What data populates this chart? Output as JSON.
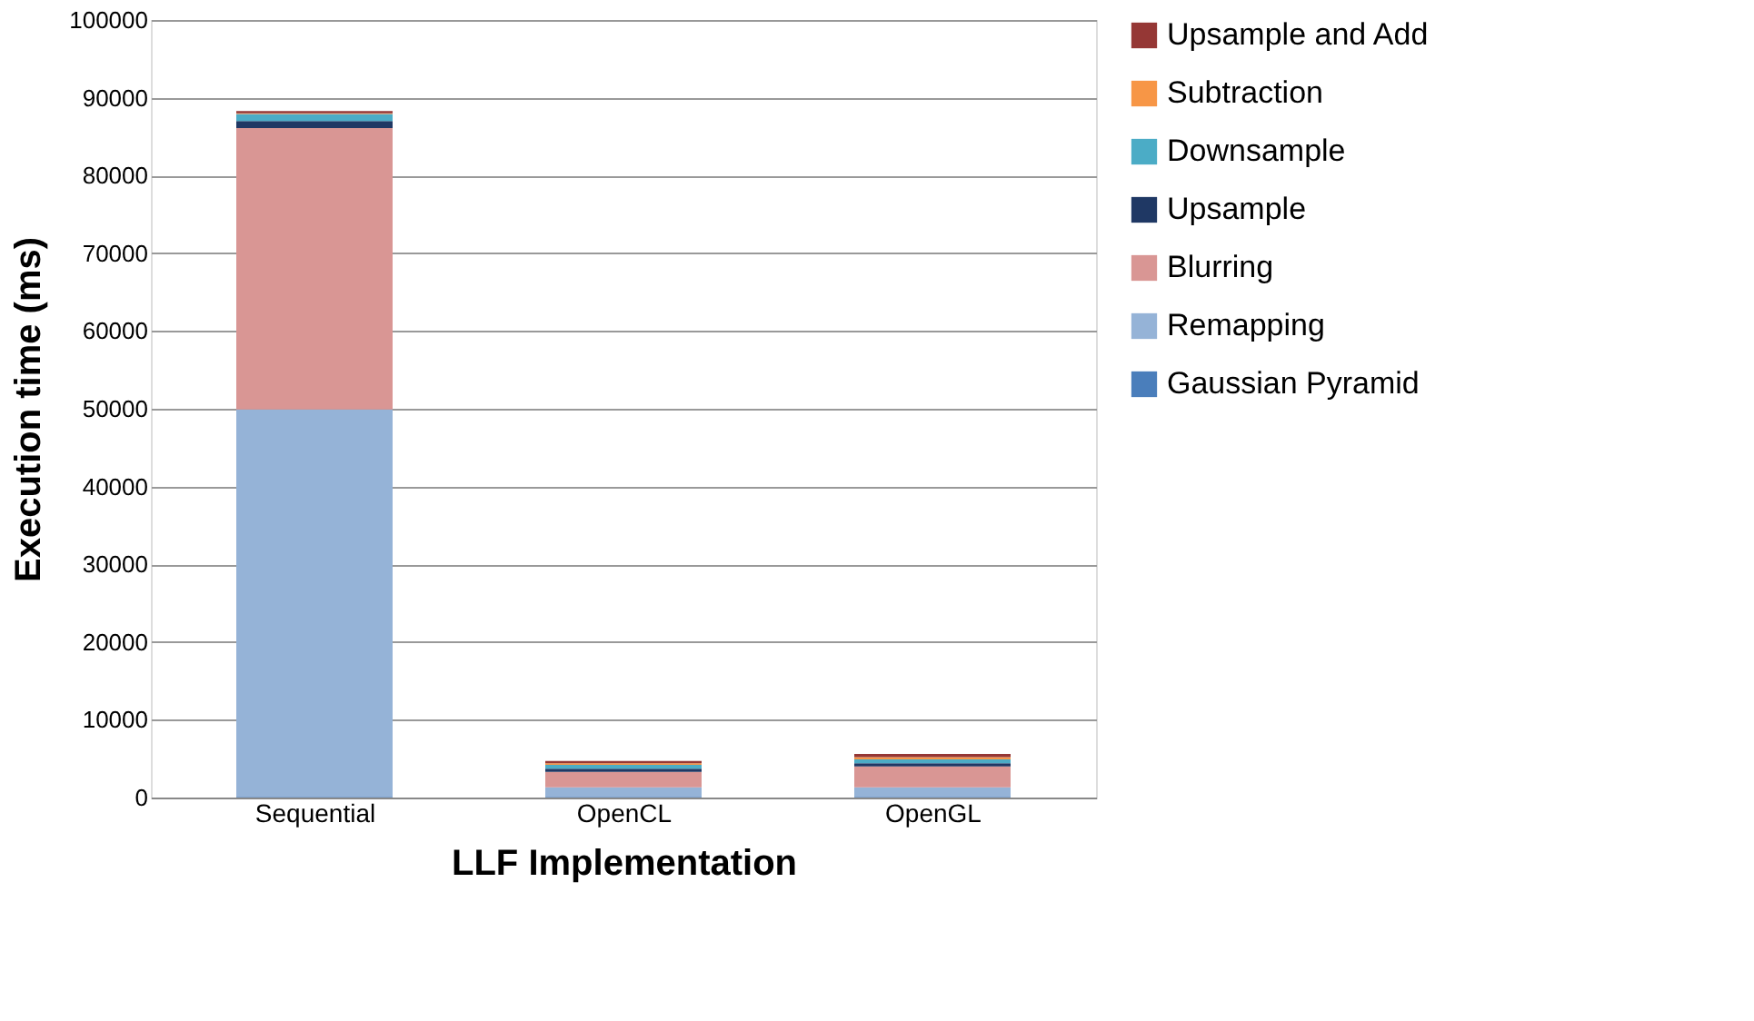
{
  "chart_data": {
    "type": "bar",
    "stacked": true,
    "xlabel": "LLF Implementation",
    "ylabel": "Execution time (ms)",
    "categories": [
      "Sequential",
      "OpenCL",
      "OpenGL"
    ],
    "series": [
      {
        "name": "Gaussian Pyramid",
        "color": "#4a7ebb",
        "values": [
          100,
          100,
          100
        ]
      },
      {
        "name": "Remapping",
        "color": "#95b3d7",
        "values": [
          49800,
          1200,
          1200
        ]
      },
      {
        "name": "Blurring",
        "color": "#d99694",
        "values": [
          36200,
          2000,
          2700
        ]
      },
      {
        "name": "Upsample",
        "color": "#1f3864",
        "values": [
          900,
          400,
          400
        ]
      },
      {
        "name": "Downsample",
        "color": "#4bacc6",
        "values": [
          900,
          500,
          500
        ]
      },
      {
        "name": "Subtraction",
        "color": "#f79646",
        "values": [
          100,
          200,
          300
        ]
      },
      {
        "name": "Upsample and Add",
        "color": "#953735",
        "values": [
          300,
          300,
          400
        ]
      }
    ],
    "ylim": [
      0,
      100000
    ],
    "yticks": [
      0,
      10000,
      20000,
      30000,
      40000,
      50000,
      60000,
      70000,
      80000,
      90000,
      100000
    ],
    "grid": "y",
    "legend": "right"
  }
}
